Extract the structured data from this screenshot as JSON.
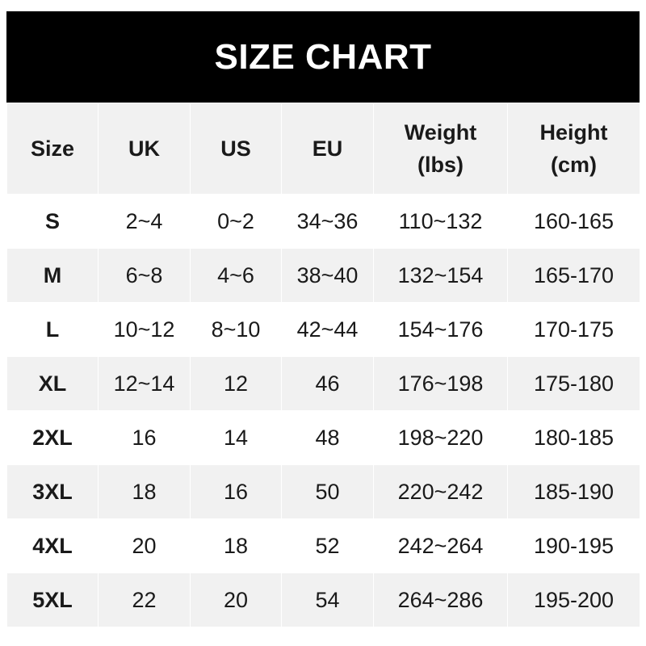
{
  "title": "SIZE CHART",
  "headers": [
    "Size",
    "UK",
    "US",
    "EU",
    "Weight\n(lbs)",
    "Height\n(cm)"
  ],
  "header_lines": [
    [
      "Size"
    ],
    [
      "UK"
    ],
    [
      "US"
    ],
    [
      "EU"
    ],
    [
      "Weight",
      "(lbs)"
    ],
    [
      "Height",
      "(cm)"
    ]
  ],
  "rows": [
    [
      "S",
      "2~4",
      "0~2",
      "34~36",
      "110~132",
      "160-165"
    ],
    [
      "M",
      "6~8",
      "4~6",
      "38~40",
      "132~154",
      "165-170"
    ],
    [
      "L",
      "10~12",
      "8~10",
      "42~44",
      "154~176",
      "170-175"
    ],
    [
      "XL",
      "12~14",
      "12",
      "46",
      "176~198",
      "175-180"
    ],
    [
      "2XL",
      "16",
      "14",
      "48",
      "198~220",
      "180-185"
    ],
    [
      "3XL",
      "18",
      "16",
      "50",
      "220~242",
      "185-190"
    ],
    [
      "4XL",
      "20",
      "18",
      "52",
      "242~264",
      "190-195"
    ],
    [
      "5XL",
      "22",
      "20",
      "54",
      "264~286",
      "195-200"
    ]
  ],
  "colors": {
    "banner": "#000000",
    "stripe": "#f1f1f1",
    "text": "#1a1a1a"
  }
}
